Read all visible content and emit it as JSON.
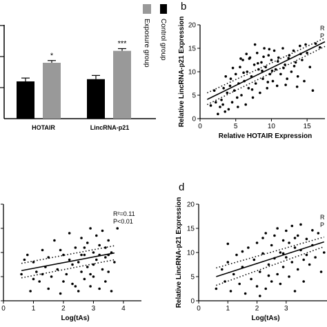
{
  "chart_data": [
    {
      "id": "a",
      "type": "bar",
      "panel_label": "",
      "categories": [
        "HOTAIR",
        "LincRNA-p21"
      ],
      "series": [
        {
          "name": "Control group",
          "color": "#000000",
          "values": [
            1.0,
            1.06
          ],
          "errors": [
            0.09,
            0.1
          ]
        },
        {
          "name": "Exposure group",
          "color": "#999999",
          "values": [
            1.5,
            1.82
          ],
          "errors": [
            0.06,
            0.06
          ]
        }
      ],
      "significance": [
        "*",
        "***"
      ],
      "ylim": [
        0,
        2.5
      ],
      "legend": "right, rotated"
    },
    {
      "id": "b",
      "type": "scatter",
      "panel_label": "b",
      "xlabel": "Relative HOTAIR Expression",
      "ylabel": "Relative LincRNA-p21 Expression",
      "xlim": [
        0,
        17.5
      ],
      "ylim": [
        0,
        20
      ],
      "x_ticks": [
        0,
        5,
        10,
        15
      ],
      "y_ticks": [
        0,
        5,
        10,
        15,
        20
      ],
      "x_tick_labels": [
        "0",
        "5",
        "10",
        "15"
      ],
      "y_tick_labels": [
        "0",
        "5",
        "10",
        "15",
        "20"
      ],
      "stat_text": [
        "R",
        "P"
      ],
      "fit_line": {
        "x": [
          1,
          17.5
        ],
        "y": [
          4.1,
          16.4
        ]
      },
      "ci_upper": {
        "x": [
          1,
          17.5
        ],
        "y": [
          5.5,
          17.2
        ]
      },
      "ci_lower": {
        "x": [
          1,
          17.5
        ],
        "y": [
          3.0,
          15.4
        ]
      },
      "points": [
        [
          2.8,
          2.5
        ],
        [
          3.0,
          4.0
        ],
        [
          3.2,
          3.0
        ],
        [
          3.5,
          1.5
        ],
        [
          3.8,
          5.5
        ],
        [
          4.0,
          2.0
        ],
        [
          4.2,
          7.0
        ],
        [
          4.5,
          3.5
        ],
        [
          4.8,
          6.0
        ],
        [
          5.0,
          9.5
        ],
        [
          5.2,
          4.5
        ],
        [
          5.4,
          7.5
        ],
        [
          5.6,
          11.0
        ],
        [
          5.8,
          5.0
        ],
        [
          6.0,
          12.5
        ],
        [
          6.2,
          8.0
        ],
        [
          6.4,
          3.0
        ],
        [
          6.6,
          10.0
        ],
        [
          6.8,
          6.5
        ],
        [
          7.0,
          13.0
        ],
        [
          7.2,
          9.0
        ],
        [
          7.4,
          4.5
        ],
        [
          7.6,
          11.5
        ],
        [
          7.8,
          7.5
        ],
        [
          8.0,
          14.0
        ],
        [
          8.2,
          10.5
        ],
        [
          8.4,
          5.5
        ],
        [
          8.6,
          12.0
        ],
        [
          8.8,
          8.5
        ],
        [
          9.0,
          15.0
        ],
        [
          9.2,
          11.0
        ],
        [
          9.4,
          6.5
        ],
        [
          9.6,
          13.5
        ],
        [
          9.8,
          9.5
        ],
        [
          10.0,
          12.5
        ],
        [
          10.2,
          8.0
        ],
        [
          10.4,
          14.5
        ],
        [
          10.6,
          10.5
        ],
        [
          10.8,
          7.0
        ],
        [
          11.0,
          13.0
        ],
        [
          11.3,
          9.5
        ],
        [
          11.6,
          15.0
        ],
        [
          11.9,
          11.5
        ],
        [
          12.2,
          8.5
        ],
        [
          12.5,
          13.5
        ],
        [
          12.8,
          10.0
        ],
        [
          13.1,
          14.5
        ],
        [
          13.4,
          12.0
        ],
        [
          13.7,
          9.0
        ],
        [
          14.0,
          15.5
        ],
        [
          14.3,
          12.5
        ],
        [
          14.6,
          8.0
        ],
        [
          15.0,
          14.0
        ],
        [
          15.4,
          11.0
        ],
        [
          15.8,
          6.0
        ],
        [
          2.2,
          3.5
        ],
        [
          2.5,
          1.0
        ],
        [
          3.3,
          6.5
        ],
        [
          4.3,
          8.5
        ],
        [
          5.3,
          2.5
        ],
        [
          6.1,
          9.8
        ],
        [
          6.9,
          12.8
        ],
        [
          7.3,
          6.2
        ],
        [
          8.1,
          11.8
        ],
        [
          8.9,
          13.2
        ],
        [
          9.5,
          7.8
        ],
        [
          10.1,
          10.2
        ],
        [
          10.9,
          12.2
        ],
        [
          11.7,
          10.8
        ],
        [
          12.4,
          12.9
        ],
        [
          13.2,
          11.2
        ],
        [
          14.1,
          13.8
        ],
        [
          14.8,
          15.8
        ],
        [
          16.2,
          16.0
        ],
        [
          16.8,
          15.2
        ],
        [
          3.6,
          9.0
        ],
        [
          4.6,
          10.8
        ],
        [
          5.7,
          12.8
        ],
        [
          6.5,
          13.8
        ],
        [
          7.7,
          15.8
        ],
        [
          8.7,
          10.2
        ],
        [
          9.7,
          14.8
        ],
        [
          2.0,
          6.0
        ],
        [
          1.5,
          2.8
        ],
        [
          12.0,
          7.2
        ],
        [
          13.6,
          6.8
        ]
      ]
    },
    {
      "id": "c",
      "type": "scatter",
      "panel_label": "",
      "xlabel": "Log(tAs)",
      "ylabel": "",
      "xlim": [
        0,
        4.6
      ],
      "ylim": [
        0,
        4
      ],
      "x_ticks": [
        0,
        1,
        2,
        3,
        4
      ],
      "y_ticks": [
        0,
        1,
        2,
        3,
        4
      ],
      "x_tick_labels": [
        "0",
        "1",
        "2",
        "3",
        "4"
      ],
      "y_tick_labels": [],
      "stat_text": [
        "R²=0.11",
        "P<0.01"
      ],
      "fit_line": {
        "x": [
          0.6,
          3.7
        ],
        "y": [
          1.25,
          1.98
        ]
      },
      "ci_upper": {
        "x": [
          0.6,
          3.7
        ],
        "y": [
          1.55,
          2.28
        ]
      },
      "ci_lower": {
        "x": [
          0.6,
          3.7
        ],
        "y": [
          0.95,
          1.7
        ]
      },
      "points": [
        [
          0.6,
          1.1
        ],
        [
          0.7,
          1.7
        ],
        [
          0.9,
          0.4
        ],
        [
          1.0,
          1.6
        ],
        [
          1.1,
          1.2
        ],
        [
          1.2,
          0.8
        ],
        [
          1.3,
          2.1
        ],
        [
          1.4,
          1.4
        ],
        [
          1.5,
          0.5
        ],
        [
          1.5,
          1.8
        ],
        [
          1.6,
          1.0
        ],
        [
          1.7,
          2.5
        ],
        [
          1.8,
          1.3
        ],
        [
          1.9,
          0.3
        ],
        [
          2.0,
          1.9
        ],
        [
          2.1,
          1.1
        ],
        [
          2.2,
          2.8
        ],
        [
          2.3,
          1.5
        ],
        [
          2.3,
          0.7
        ],
        [
          2.4,
          2.2
        ],
        [
          2.5,
          1.6
        ],
        [
          2.5,
          0.4
        ],
        [
          2.6,
          2.6
        ],
        [
          2.6,
          1.2
        ],
        [
          2.7,
          1.9
        ],
        [
          2.7,
          0.9
        ],
        [
          2.8,
          2.4
        ],
        [
          2.8,
          1.4
        ],
        [
          2.9,
          3.0
        ],
        [
          2.9,
          0.6
        ],
        [
          3.0,
          2.0
        ],
        [
          3.0,
          1.0
        ],
        [
          3.1,
          2.7
        ],
        [
          3.1,
          1.7
        ],
        [
          3.2,
          0.5
        ],
        [
          3.2,
          2.3
        ],
        [
          3.3,
          1.3
        ],
        [
          3.3,
          2.9
        ],
        [
          3.4,
          1.8
        ],
        [
          3.4,
          0.8
        ],
        [
          3.5,
          2.5
        ],
        [
          3.5,
          1.2
        ],
        [
          3.6,
          2.0
        ],
        [
          3.6,
          0.4
        ],
        [
          3.7,
          1.6
        ],
        [
          1.9,
          2.1
        ],
        [
          2.2,
          1.7
        ],
        [
          2.4,
          0.6
        ],
        [
          2.7,
          2.2
        ],
        [
          3.0,
          1.5
        ],
        [
          3.2,
          1.9
        ],
        [
          3.4,
          2.2
        ],
        [
          1.0,
          0.9
        ],
        [
          1.3,
          1.1
        ],
        [
          2.0,
          0.8
        ],
        [
          2.9,
          1.1
        ],
        [
          3.5,
          1.9
        ],
        [
          3.8,
          3.0
        ],
        [
          0.8,
          1.9
        ],
        [
          2.6,
          1.9
        ]
      ]
    },
    {
      "id": "d",
      "type": "scatter",
      "panel_label": "d",
      "xlabel": "Log(tAs)",
      "ylabel": "Relative LincRNA-p21 Expression",
      "xlim": [
        0,
        4.4
      ],
      "ylim": [
        0,
        20
      ],
      "x_ticks": [
        0,
        1,
        2,
        3
      ],
      "y_ticks": [
        0,
        5,
        10,
        15,
        20
      ],
      "x_tick_labels": [
        "0",
        "1",
        "2",
        "3"
      ],
      "y_tick_labels": [
        "0",
        "5",
        "10",
        "15",
        "20"
      ],
      "stat_text": [
        "R",
        "P"
      ],
      "fit_line": {
        "x": [
          0.6,
          4.3
        ],
        "y": [
          5.0,
          12.2
        ]
      },
      "ci_upper": {
        "x": [
          0.6,
          4.3
        ],
        "y": [
          6.8,
          13.2
        ]
      },
      "ci_lower": {
        "x": [
          0.6,
          4.3
        ],
        "y": [
          3.2,
          11.2
        ]
      },
      "points": [
        [
          0.6,
          2.5
        ],
        [
          0.8,
          6.5
        ],
        [
          0.9,
          4.0
        ],
        [
          1.0,
          8.0
        ],
        [
          1.1,
          2.0
        ],
        [
          1.2,
          5.5
        ],
        [
          1.3,
          9.5
        ],
        [
          1.4,
          3.5
        ],
        [
          1.5,
          7.0
        ],
        [
          1.6,
          1.5
        ],
        [
          1.7,
          11.0
        ],
        [
          1.8,
          4.5
        ],
        [
          1.9,
          8.5
        ],
        [
          2.0,
          3.0
        ],
        [
          2.0,
          12.0
        ],
        [
          2.1,
          6.0
        ],
        [
          2.2,
          9.8
        ],
        [
          2.3,
          2.5
        ],
        [
          2.3,
          14.0
        ],
        [
          2.4,
          7.5
        ],
        [
          2.5,
          11.5
        ],
        [
          2.5,
          4.0
        ],
        [
          2.6,
          13.5
        ],
        [
          2.6,
          8.8
        ],
        [
          2.7,
          5.5
        ],
        [
          2.7,
          15.0
        ],
        [
          2.8,
          10.0
        ],
        [
          2.8,
          3.5
        ],
        [
          2.9,
          12.5
        ],
        [
          2.9,
          7.0
        ],
        [
          3.0,
          14.5
        ],
        [
          3.0,
          9.0
        ],
        [
          3.1,
          5.0
        ],
        [
          3.1,
          12.0
        ],
        [
          3.2,
          15.5
        ],
        [
          3.2,
          8.0
        ],
        [
          3.3,
          11.0
        ],
        [
          3.3,
          2.0
        ],
        [
          3.4,
          13.5
        ],
        [
          3.4,
          6.5
        ],
        [
          3.5,
          10.5
        ],
        [
          3.5,
          15.8
        ],
        [
          3.6,
          8.5
        ],
        [
          3.6,
          4.0
        ],
        [
          3.7,
          12.8
        ],
        [
          3.8,
          7.5
        ],
        [
          3.9,
          11.5
        ],
        [
          4.0,
          9.0
        ],
        [
          4.1,
          14.0
        ],
        [
          4.2,
          6.0
        ],
        [
          4.3,
          10.0
        ],
        [
          1.5,
          10.2
        ],
        [
          2.2,
          13.0
        ],
        [
          2.4,
          5.2
        ],
        [
          2.9,
          9.8
        ],
        [
          3.3,
          13.0
        ],
        [
          3.7,
          9.5
        ],
        [
          1.0,
          11.8
        ],
        [
          3.9,
          14.6
        ],
        [
          2.1,
          1.0
        ]
      ]
    }
  ],
  "panel_b_label": "b",
  "panel_d_label": "d"
}
